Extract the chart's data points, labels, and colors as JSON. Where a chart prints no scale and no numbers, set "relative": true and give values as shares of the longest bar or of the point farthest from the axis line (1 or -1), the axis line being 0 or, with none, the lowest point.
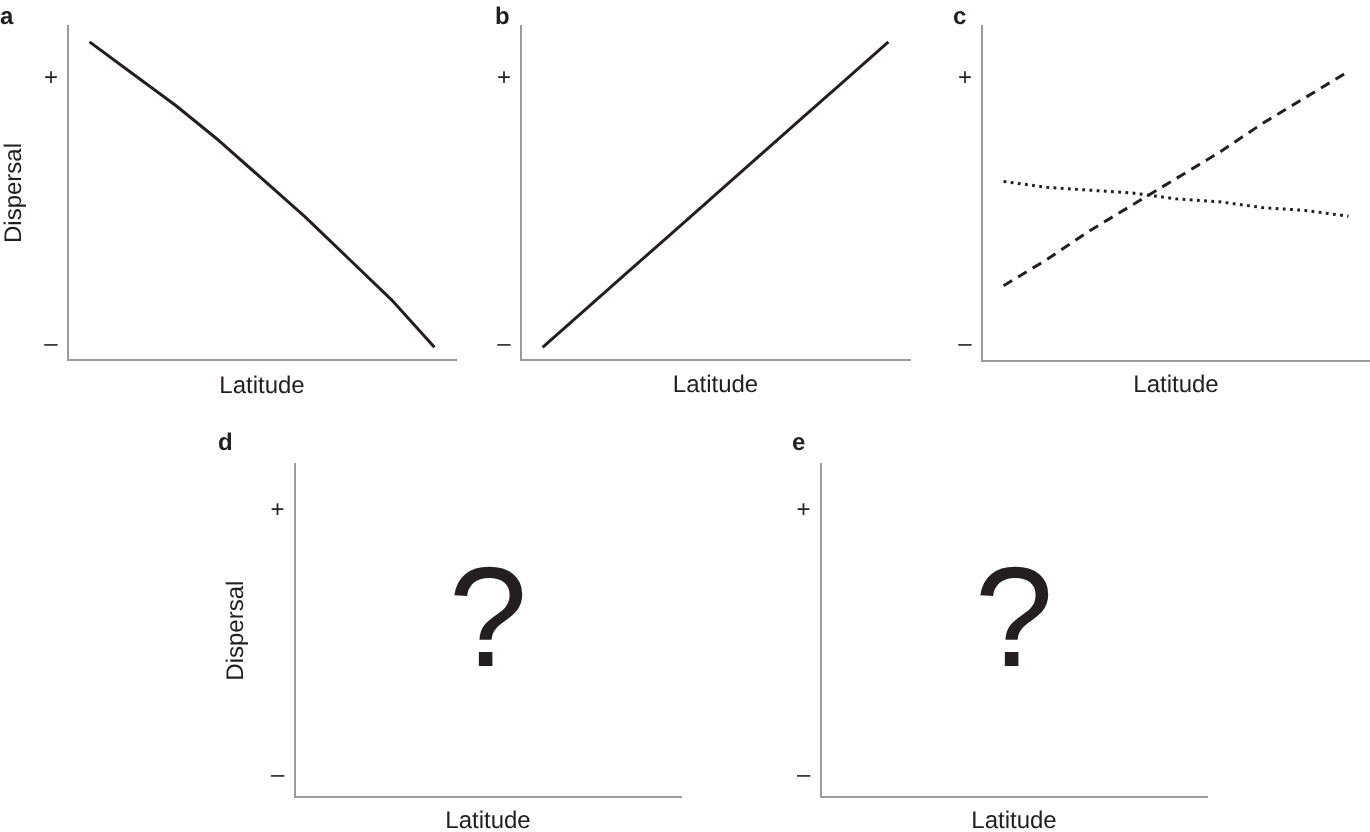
{
  "chart_data": [
    {
      "type": "line",
      "title": "a",
      "xlabel": "Latitude",
      "ylabel": "Dispersal",
      "relative": true,
      "categories": [
        null,
        null,
        null,
        null,
        null,
        null,
        null,
        null,
        null
      ],
      "series": [
        {
          "color": "#231f20",
          "values": [
            1,
            0.9,
            0.8,
            0.69,
            0.57,
            0.45,
            0.32,
            0.19,
            0.04
          ]
        }
      ],
      "annotations": [
        "+",
        "–"
      ]
    },
    {
      "type": "line",
      "title": "b",
      "xlabel": "Latitude",
      "relative": true,
      "categories": [
        null,
        null,
        null,
        null,
        null,
        null,
        null,
        null,
        null
      ],
      "series": [
        {
          "color": "#231f20",
          "values": [
            0.04,
            0.16,
            0.28,
            0.4,
            0.52,
            0.64,
            0.76,
            0.88,
            1
          ]
        }
      ],
      "annotations": [
        "+",
        "–"
      ]
    },
    {
      "type": "line",
      "title": "c",
      "xlabel": "Latitude",
      "relative": true,
      "categories": [
        null,
        null,
        null,
        null,
        null,
        null,
        null,
        null,
        null
      ],
      "series": [
        {
          "color": "#231f20",
          "line_style": "dashed",
          "values": [
            0.26,
            0.35,
            0.45,
            0.54,
            0.63,
            0.72,
            0.82,
            0.91,
            1
          ]
        },
        {
          "color": "#231f20",
          "line_style": "dotted",
          "values": [
            0.62,
            0.6,
            0.59,
            0.58,
            0.56,
            0.55,
            0.53,
            0.52,
            0.5
          ]
        }
      ],
      "annotations": [
        "+",
        "–"
      ]
    },
    {
      "type": "other",
      "title": "d",
      "xlabel": "Latitude",
      "ylabel": "Dispersal",
      "annotations": [
        "+",
        "–",
        "?"
      ]
    },
    {
      "type": "other",
      "title": "e",
      "xlabel": "Latitude",
      "annotations": [
        "+",
        "–",
        "?"
      ]
    }
  ]
}
